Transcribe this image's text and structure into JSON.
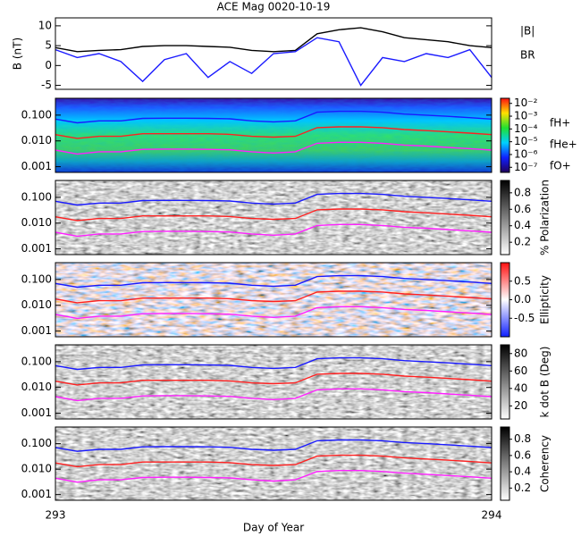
{
  "chart_data": [
    {
      "type": "line",
      "title": "ACE Mag 0020-10-19",
      "ylabel": "B (nT)",
      "x": [
        293,
        293.05,
        293.1,
        293.15,
        293.2,
        293.25,
        293.3,
        293.35,
        293.4,
        293.45,
        293.5,
        293.55,
        293.6,
        293.65,
        293.7,
        293.75,
        293.8,
        293.85,
        293.9,
        293.95,
        294
      ],
      "xlim": [
        293,
        294
      ],
      "ylim": [
        -6,
        12
      ],
      "yticks": [
        -5,
        0,
        5,
        10
      ],
      "series": [
        {
          "name": "|B|",
          "color": "#000000",
          "values": [
            4.5,
            3.5,
            3.8,
            4.0,
            4.8,
            5.0,
            5.0,
            4.8,
            4.6,
            3.8,
            3.5,
            3.8,
            8.0,
            9.0,
            9.5,
            8.5,
            7.0,
            6.5,
            6.0,
            5.0,
            4.5
          ]
        },
        {
          "name": "BR",
          "color": "#1a1aff",
          "values": [
            4.0,
            2.0,
            3.0,
            1.0,
            -4.0,
            1.5,
            3.0,
            -3.0,
            1.0,
            -2.0,
            3.0,
            3.5,
            7.0,
            6.0,
            -5.0,
            2.0,
            1.0,
            3.0,
            2.0,
            4.0,
            -3.0
          ]
        }
      ]
    },
    {
      "type": "spectrogram",
      "style": "rainbow",
      "x": [
        293,
        293.05,
        293.1,
        293.15,
        293.2,
        293.25,
        293.3,
        293.35,
        293.4,
        293.45,
        293.5,
        293.55,
        293.6,
        293.65,
        293.7,
        293.75,
        293.8,
        293.85,
        293.9,
        293.95,
        294
      ],
      "xlim": [
        293,
        294
      ],
      "ylim": [
        0.0006,
        0.45
      ],
      "log_y": true,
      "yticks": [
        0.001,
        {
          "value": 0.01,
          "label": "0.010"
        },
        {
          "value": 0.1,
          "label": "0.100"
        }
      ],
      "colorbar": {
        "lim": [
          -7.4,
          -1.6
        ],
        "ticks": [
          {
            "value": -2,
            "label": "10⁻²"
          },
          {
            "value": -3,
            "label": "10⁻³"
          },
          {
            "value": -4,
            "label": "10⁻⁴"
          },
          {
            "value": -5,
            "label": "10⁻⁵"
          },
          {
            "value": -6,
            "label": "10⁻⁶"
          },
          {
            "value": -7,
            "label": "10⁻⁷"
          }
        ]
      },
      "legend": true,
      "series": [
        {
          "name": "fH+",
          "color": "#1a1aff",
          "values": [
            0.07,
            0.05,
            0.06,
            0.06,
            0.075,
            0.076,
            0.076,
            0.075,
            0.072,
            0.06,
            0.055,
            0.06,
            0.13,
            0.14,
            0.14,
            0.13,
            0.11,
            0.1,
            0.09,
            0.08,
            0.07
          ]
        },
        {
          "name": "fHe+",
          "color": "#ff2020",
          "values": [
            0.0175,
            0.0125,
            0.015,
            0.015,
            0.019,
            0.019,
            0.019,
            0.019,
            0.018,
            0.015,
            0.014,
            0.015,
            0.0325,
            0.035,
            0.035,
            0.0325,
            0.0275,
            0.025,
            0.0225,
            0.02,
            0.0175
          ]
        },
        {
          "name": "fO+",
          "color": "#ff20ff",
          "values": [
            0.0044,
            0.0031,
            0.0038,
            0.0038,
            0.0047,
            0.0048,
            0.0048,
            0.0047,
            0.0045,
            0.0038,
            0.0034,
            0.0038,
            0.0081,
            0.0088,
            0.0088,
            0.0081,
            0.0069,
            0.0063,
            0.0056,
            0.005,
            0.0044
          ]
        }
      ]
    },
    {
      "type": "spectrogram",
      "style": "gray",
      "x": [
        293,
        293.05,
        293.1,
        293.15,
        293.2,
        293.25,
        293.3,
        293.35,
        293.4,
        293.45,
        293.5,
        293.55,
        293.6,
        293.65,
        293.7,
        293.75,
        293.8,
        293.85,
        293.9,
        293.95,
        294
      ],
      "xlim": [
        293,
        294
      ],
      "ylim": [
        0.0006,
        0.45
      ],
      "log_y": true,
      "yticks": [
        0.001,
        {
          "value": 0.01,
          "label": "0.010"
        },
        {
          "value": 0.1,
          "label": "0.100"
        }
      ],
      "colorbar": {
        "label": "% Polarization",
        "lim": [
          0.05,
          0.95
        ],
        "ticks": [
          0.2,
          0.4,
          0.6,
          0.8
        ]
      },
      "series": [
        {
          "name": "fH+",
          "color": "#1a1aff",
          "values": [
            0.07,
            0.05,
            0.06,
            0.06,
            0.075,
            0.076,
            0.076,
            0.075,
            0.072,
            0.06,
            0.055,
            0.06,
            0.13,
            0.14,
            0.14,
            0.13,
            0.11,
            0.1,
            0.09,
            0.08,
            0.07
          ]
        },
        {
          "name": "fHe+",
          "color": "#ff2020",
          "values": [
            0.0175,
            0.0125,
            0.015,
            0.015,
            0.019,
            0.019,
            0.019,
            0.019,
            0.018,
            0.015,
            0.014,
            0.015,
            0.0325,
            0.035,
            0.035,
            0.0325,
            0.0275,
            0.025,
            0.0225,
            0.02,
            0.0175
          ]
        },
        {
          "name": "fO+",
          "color": "#ff20ff",
          "values": [
            0.0044,
            0.0031,
            0.0038,
            0.0038,
            0.0047,
            0.0048,
            0.0048,
            0.0047,
            0.0045,
            0.0038,
            0.0034,
            0.0038,
            0.0081,
            0.0088,
            0.0088,
            0.0081,
            0.0069,
            0.0063,
            0.0056,
            0.005,
            0.0044
          ]
        }
      ]
    },
    {
      "type": "spectrogram",
      "style": "diverging",
      "x": [
        293,
        293.05,
        293.1,
        293.15,
        293.2,
        293.25,
        293.3,
        293.35,
        293.4,
        293.45,
        293.5,
        293.55,
        293.6,
        293.65,
        293.7,
        293.75,
        293.8,
        293.85,
        293.9,
        293.95,
        294
      ],
      "xlim": [
        293,
        294
      ],
      "ylim": [
        0.0006,
        0.45
      ],
      "log_y": true,
      "yticks": [
        0.001,
        {
          "value": 0.01,
          "label": "0.010"
        },
        {
          "value": 0.1,
          "label": "0.100"
        }
      ],
      "colorbar": {
        "label": "Ellipticity",
        "lim": [
          -1,
          1
        ],
        "ticks": [
          -0.5,
          {
            "value": 0,
            "label": "0.0"
          },
          0.5
        ]
      },
      "series": [
        {
          "name": "fH+",
          "color": "#1a1aff",
          "values": [
            0.07,
            0.05,
            0.06,
            0.06,
            0.075,
            0.076,
            0.076,
            0.075,
            0.072,
            0.06,
            0.055,
            0.06,
            0.13,
            0.14,
            0.14,
            0.13,
            0.11,
            0.1,
            0.09,
            0.08,
            0.07
          ]
        },
        {
          "name": "fHe+",
          "color": "#ff2020",
          "values": [
            0.0175,
            0.0125,
            0.015,
            0.015,
            0.019,
            0.019,
            0.019,
            0.019,
            0.018,
            0.015,
            0.014,
            0.015,
            0.0325,
            0.035,
            0.035,
            0.0325,
            0.0275,
            0.025,
            0.0225,
            0.02,
            0.0175
          ]
        },
        {
          "name": "fO+",
          "color": "#ff20ff",
          "values": [
            0.0044,
            0.0031,
            0.0038,
            0.0038,
            0.0047,
            0.0048,
            0.0048,
            0.0047,
            0.0045,
            0.0038,
            0.0034,
            0.0038,
            0.0081,
            0.0088,
            0.0088,
            0.0081,
            0.0069,
            0.0063,
            0.0056,
            0.005,
            0.0044
          ]
        }
      ]
    },
    {
      "type": "spectrogram",
      "style": "gray",
      "x": [
        293,
        293.05,
        293.1,
        293.15,
        293.2,
        293.25,
        293.3,
        293.35,
        293.4,
        293.45,
        293.5,
        293.55,
        293.6,
        293.65,
        293.7,
        293.75,
        293.8,
        293.85,
        293.9,
        293.95,
        294
      ],
      "xlim": [
        293,
        294
      ],
      "ylim": [
        0.0006,
        0.45
      ],
      "log_y": true,
      "yticks": [
        0.001,
        {
          "value": 0.01,
          "label": "0.010"
        },
        {
          "value": 0.1,
          "label": "0.100"
        }
      ],
      "colorbar": {
        "label": "k dot B (Deg)",
        "lim": [
          5,
          90
        ],
        "ticks": [
          20,
          40,
          60,
          80
        ]
      },
      "series": [
        {
          "name": "fH+",
          "color": "#1a1aff",
          "values": [
            0.07,
            0.05,
            0.06,
            0.06,
            0.075,
            0.076,
            0.076,
            0.075,
            0.072,
            0.06,
            0.055,
            0.06,
            0.13,
            0.14,
            0.14,
            0.13,
            0.11,
            0.1,
            0.09,
            0.08,
            0.07
          ]
        },
        {
          "name": "fHe+",
          "color": "#ff2020",
          "values": [
            0.0175,
            0.0125,
            0.015,
            0.015,
            0.019,
            0.019,
            0.019,
            0.019,
            0.018,
            0.015,
            0.014,
            0.015,
            0.0325,
            0.035,
            0.035,
            0.0325,
            0.0275,
            0.025,
            0.0225,
            0.02,
            0.0175
          ]
        },
        {
          "name": "fO+",
          "color": "#ff20ff",
          "values": [
            0.0044,
            0.0031,
            0.0038,
            0.0038,
            0.0047,
            0.0048,
            0.0048,
            0.0047,
            0.0045,
            0.0038,
            0.0034,
            0.0038,
            0.0081,
            0.0088,
            0.0088,
            0.0081,
            0.0069,
            0.0063,
            0.0056,
            0.005,
            0.0044
          ]
        }
      ]
    },
    {
      "type": "spectrogram",
      "style": "gray",
      "x": [
        293,
        293.05,
        293.1,
        293.15,
        293.2,
        293.25,
        293.3,
        293.35,
        293.4,
        293.45,
        293.5,
        293.55,
        293.6,
        293.65,
        293.7,
        293.75,
        293.8,
        293.85,
        293.9,
        293.95,
        294
      ],
      "xlim": [
        293,
        294
      ],
      "xticks": [
        293,
        294
      ],
      "xlabel": "Day of Year",
      "ylim": [
        0.0006,
        0.45
      ],
      "log_y": true,
      "yticks": [
        0.001,
        {
          "value": 0.01,
          "label": "0.010"
        },
        {
          "value": 0.1,
          "label": "0.100"
        }
      ],
      "colorbar": {
        "label": "Coherency",
        "lim": [
          0.05,
          0.95
        ],
        "ticks": [
          0.2,
          0.4,
          0.6,
          0.8
        ]
      },
      "series": [
        {
          "name": "fH+",
          "color": "#1a1aff",
          "values": [
            0.07,
            0.05,
            0.06,
            0.06,
            0.075,
            0.076,
            0.076,
            0.075,
            0.072,
            0.06,
            0.055,
            0.06,
            0.13,
            0.14,
            0.14,
            0.13,
            0.11,
            0.1,
            0.09,
            0.08,
            0.07
          ]
        },
        {
          "name": "fHe+",
          "color": "#ff2020",
          "values": [
            0.0175,
            0.0125,
            0.015,
            0.015,
            0.019,
            0.019,
            0.019,
            0.019,
            0.018,
            0.015,
            0.014,
            0.015,
            0.0325,
            0.035,
            0.035,
            0.0325,
            0.0275,
            0.025,
            0.0225,
            0.02,
            0.0175
          ]
        },
        {
          "name": "fO+",
          "color": "#ff20ff",
          "values": [
            0.0044,
            0.0031,
            0.0038,
            0.0038,
            0.0047,
            0.0048,
            0.0048,
            0.0047,
            0.0045,
            0.0038,
            0.0034,
            0.0038,
            0.0081,
            0.0088,
            0.0088,
            0.0081,
            0.0069,
            0.0063,
            0.0056,
            0.005,
            0.0044
          ]
        }
      ]
    }
  ]
}
